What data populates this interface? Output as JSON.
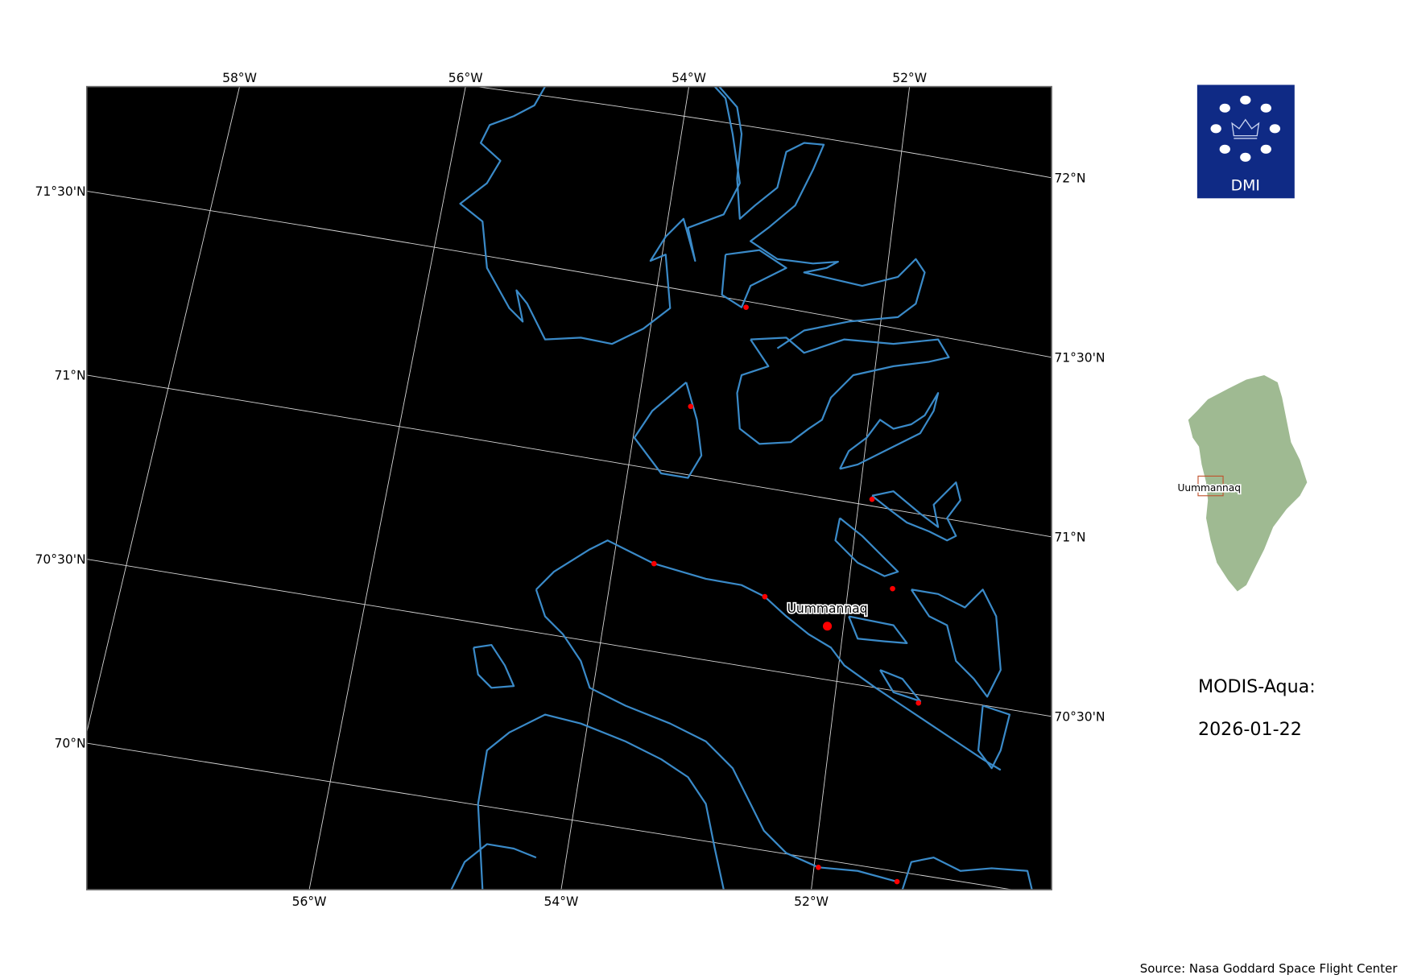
{
  "map": {
    "top_lon_labels": [
      "58°W",
      "56°W",
      "54°W",
      "52°W"
    ],
    "bottom_lon_labels": [
      "56°W",
      "54°W",
      "52°W"
    ],
    "left_lat_labels": [
      "71°30'N",
      "71°N",
      "70°30'N",
      "70°N"
    ],
    "right_lat_labels": [
      "72°N",
      "71°30'N",
      "71°N",
      "70°30'N"
    ],
    "place_label": "Uummannaq",
    "background_color": "#000000",
    "coastline_color": "#3a8ac8",
    "town_marker_color": "#ff0000"
  },
  "logo": {
    "text": "DMI",
    "color": "#0f2a85"
  },
  "inset": {
    "region_label": "Uummannaq",
    "land_color": "#9fba92",
    "box_color": "#c0502a"
  },
  "info": {
    "sensor": "MODIS-Aqua:",
    "date": "2026-01-22"
  },
  "source": "Source: Nasa Goddard Space Flight Center"
}
